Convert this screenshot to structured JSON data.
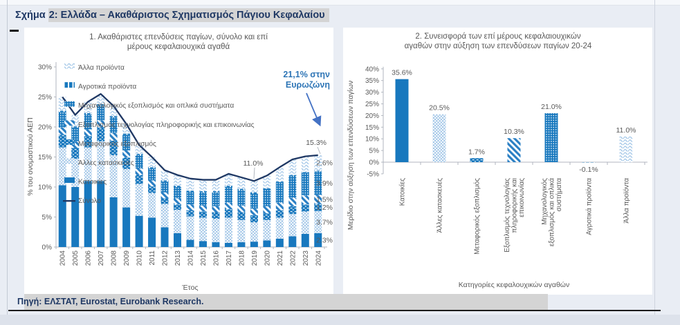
{
  "figure": {
    "title_prefix": "Σχήμα ",
    "title_rest": "2: Ελλάδα – Ακαθάριστος Σχηματισμός Πάγιου Κεφαλαίου",
    "source": "Πηγή: ΕΛΣΤΑΤ, Eurostat, Eurobank Research."
  },
  "colors": {
    "accent_blue": "#1878be",
    "light_blue": "#9dc3e6",
    "diag_blue": "#2a7fc4",
    "navy": "#1f3864",
    "annotation_blue": "#2e75b6",
    "arrow_blue": "#4472c4",
    "text_grey": "#595959",
    "axis_grey": "#b0b6bf",
    "background": "#e9edf4",
    "panel": "#ffffff",
    "highlight_grey": "#d4d4d4"
  },
  "chart_data": [
    {
      "type": "bar",
      "subtype": "stacked-bars-with-total-line",
      "title_lines": [
        "1. Ακαθάριστες επενδύσεις παγίων, σύνολο και επί",
        "μέρους κεφαλαιουχικά αγαθά"
      ],
      "xlabel": "Έτος",
      "ylabel": "% του ονομαστικού ΑΕΠ",
      "ylim": [
        0,
        30
      ],
      "ytick_step": 5,
      "grid": false,
      "legend_position": "upper-left-inside",
      "categories": [
        "2004",
        "2005",
        "2006",
        "2007",
        "2008",
        "2009",
        "2010",
        "2011",
        "2012",
        "2013",
        "2014",
        "2015",
        "2016",
        "2017",
        "2018",
        "2019",
        "2020",
        "2021",
        "2022",
        "2023",
        "2024"
      ],
      "series": [
        {
          "name": "Κατοικίες",
          "pattern": "solid",
          "values": [
            10.3,
            10.0,
            11.0,
            11.0,
            8.3,
            6.6,
            5.2,
            4.9,
            3.3,
            2.3,
            1.2,
            1.0,
            0.8,
            0.7,
            0.8,
            0.9,
            1.1,
            1.4,
            1.8,
            2.2,
            2.3
          ]
        },
        {
          "name": "Άλλες κατασκευές",
          "pattern": "checker",
          "values": [
            6.3,
            4.7,
            5.6,
            6.6,
            7.0,
            6.4,
            5.3,
            4.1,
            3.9,
            3.9,
            3.9,
            3.9,
            3.9,
            4.2,
            3.7,
            3.2,
            3.4,
            3.5,
            3.7,
            3.7,
            3.7
          ]
        },
        {
          "name": "Μεταφορικός εξοπλισμός",
          "pattern": "brick",
          "values": [
            2.1,
            1.8,
            1.9,
            2.3,
            2.4,
            1.9,
            1.5,
            1.1,
            0.9,
            0.9,
            1.0,
            1.0,
            1.1,
            1.4,
            1.3,
            1.2,
            1.1,
            1.2,
            1.3,
            1.2,
            1.2
          ]
        },
        {
          "name": "Εξοπλισμός τεχνολογίας πληροφορικής και επικοινωνίας",
          "pattern": "diag",
          "values": [
            1.2,
            1.1,
            1.1,
            1.2,
            1.3,
            1.2,
            1.1,
            1.0,
            1.0,
            1.0,
            1.0,
            1.0,
            1.0,
            1.1,
            1.1,
            1.1,
            1.2,
            1.3,
            1.4,
            1.5,
            1.5
          ]
        },
        {
          "name": "Μηχανολογικός εξοπλισμός και οπλικά συστήματα",
          "pattern": "dot",
          "values": [
            2.6,
            2.3,
            2.5,
            2.5,
            2.6,
            2.6,
            2.2,
            2.0,
            1.8,
            1.9,
            2.1,
            2.2,
            2.3,
            2.6,
            2.6,
            2.5,
            2.9,
            3.4,
            3.7,
            3.8,
            3.9
          ]
        },
        {
          "name": "Αγροτικά προϊόντα",
          "pattern": "hdash",
          "values": [
            0.2,
            0.2,
            0.2,
            0.2,
            0.2,
            0.2,
            0.2,
            0.2,
            0.2,
            0.2,
            0.2,
            0.2,
            0.2,
            0.2,
            0.2,
            0.2,
            0.1,
            0.1,
            0.1,
            0.1,
            0.1
          ]
        },
        {
          "name": "Άλλα προϊόντα",
          "pattern": "wavy",
          "values": [
            2.3,
            1.9,
            1.9,
            1.7,
            1.7,
            1.6,
            1.5,
            1.7,
            1.7,
            1.8,
            2.0,
            1.9,
            1.9,
            2.0,
            1.9,
            1.9,
            2.1,
            2.4,
            2.6,
            2.6,
            2.6
          ]
        }
      ],
      "line_series": {
        "name": "Σύνολο",
        "values": [
          25.0,
          22.0,
          24.2,
          25.5,
          23.5,
          20.5,
          17.0,
          15.0,
          12.8,
          12.0,
          11.4,
          11.2,
          11.2,
          12.2,
          11.6,
          11.0,
          11.9,
          13.3,
          14.6,
          15.1,
          15.3
        ]
      },
      "legend": [
        "Άλλα προϊόντα",
        "Αγροτικά προϊόντα",
        "Μηχανολογικός εξοπλισμός και οπλικά συστήματα",
        "Εξοπλισμός τεχνολογίας πληροφορικής και επικοινωνίας",
        "Μεταφορικός εξοπλισμός",
        "Άλλες κατασκευές",
        "Κατοικίες",
        "Σύνολο"
      ],
      "annotations": {
        "eurozone_lines": [
          "21,1% στην",
          "Ευρωζώνη"
        ],
        "label_2024_total": "15.3%",
        "label_2019_total": "11.0%",
        "stack_labels_2024": [
          "2.6%",
          "3.9%",
          "1.5%",
          "1.2%",
          "3.7%",
          "2.3%"
        ]
      }
    },
    {
      "type": "bar",
      "title_lines": [
        "2. Συνεισφορά των επί μέρους κεφαλαιουχικών",
        "αγαθών στην αύξηση των επενδύσεων παγίων 20-24"
      ],
      "xlabel": "Κατηγορίες κεφαλουχικών αγαθών",
      "ylabel": "Μερίδιο στην αύξηση των επενδύσεων παγίων",
      "ylim": [
        -5,
        40
      ],
      "ytick_step": 5,
      "grid": false,
      "categories": [
        "Κατοικίες",
        "Άλλες κατασκευές",
        "Μεταφορικός εξοπλισμός",
        "Εξοπλισμός τεχνολογίας πληροφορικής και επικοινωνίας",
        "Μηχανολογικός εξοπλισμός και οπλικά συστήματα",
        "Αγροτικά προϊόντα",
        "Άλλα προϊόντα"
      ],
      "values": [
        35.6,
        20.5,
        1.7,
        10.3,
        21.0,
        -0.1,
        11.0
      ],
      "value_labels": [
        "35.6%",
        "20.5%",
        "1.7%",
        "10.3%",
        "21.0%",
        "-0.1%",
        "11.0%"
      ],
      "patterns": [
        "solid",
        "checker",
        "brick",
        "diag",
        "dot",
        "hdash",
        "wavy"
      ]
    }
  ]
}
